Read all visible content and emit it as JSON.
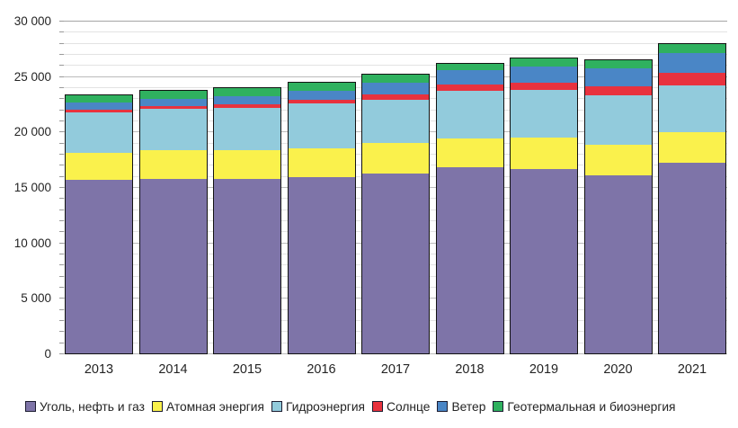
{
  "chart_data": {
    "type": "bar",
    "stacked": true,
    "title": "",
    "xlabel": "",
    "ylabel": "",
    "categories": [
      "2013",
      "2014",
      "2015",
      "2016",
      "2017",
      "2018",
      "2019",
      "2020",
      "2021"
    ],
    "series": [
      {
        "name": "Уголь, нефть и газ",
        "color": "#7E74A8",
        "values": [
          15830,
          15950,
          15920,
          16100,
          16450,
          16990,
          16830,
          16230,
          17400
        ]
      },
      {
        "name": "Атомная энергия",
        "color": "#FAF14C",
        "values": [
          2420,
          2540,
          2570,
          2630,
          2690,
          2610,
          2830,
          2770,
          2750
        ]
      },
      {
        "name": "Гидроэнергия",
        "color": "#92CBDC",
        "values": [
          3660,
          3750,
          3820,
          3990,
          3950,
          4300,
          4280,
          4450,
          4240
        ]
      },
      {
        "name": "Солнце",
        "color": "#E8323E",
        "values": [
          250,
          270,
          320,
          370,
          480,
          570,
          650,
          860,
          1130
        ]
      },
      {
        "name": "Ветер",
        "color": "#4A86C6",
        "values": [
          640,
          650,
          730,
          810,
          1070,
          1270,
          1480,
          1560,
          1750
        ]
      },
      {
        "name": "Геотермальная и биоэнергия",
        "color": "#2FB15F",
        "values": [
          640,
          650,
          700,
          680,
          640,
          570,
          650,
          730,
          750
        ]
      }
    ],
    "ylim": [
      0,
      30000
    ],
    "ytick_step": 5000,
    "minor_gridline_step": 1000,
    "ytick_labels": [
      "0",
      "5 000",
      "10 000",
      "15 000",
      "20 000",
      "25 000",
      "30 000"
    ],
    "grid": true,
    "legend_position": "bottom",
    "colors": {
      "background": "#FFFFFF",
      "major_gridline": "#BCBCBC",
      "minor_gridline": "#E3E3E3",
      "top_gridline": "#A6A6A6",
      "bar_border": "#121212",
      "axis_tick": "#9A9A9A",
      "text": "#242424"
    }
  }
}
